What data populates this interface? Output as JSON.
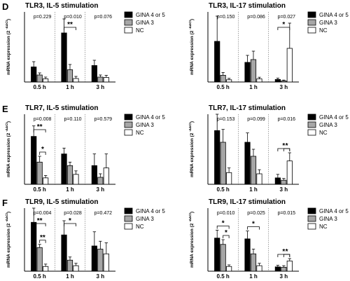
{
  "figure": {
    "ylabel": "mRNA expression (2",
    "ylabel_sup": "-ΔΔCt"
  },
  "colors": {
    "series": [
      "#000000",
      "#a6a6a6",
      "#ffffff"
    ],
    "stroke": "#000000"
  },
  "chart_data": [
    {
      "type": "bar",
      "panel_letter": "D",
      "title": "TLR3, IL-5 stimulation",
      "categories": [
        "0.5 h",
        "1 h",
        "3 h"
      ],
      "ylim": [
        0,
        20
      ],
      "series": [
        {
          "name": "GINA 4 or 5",
          "values": [
            4.3,
            14.0,
            4.7
          ],
          "errors": [
            1.5,
            4.0,
            1.5
          ]
        },
        {
          "name": "GINA 3",
          "values": [
            2.0,
            3.5,
            1.4
          ],
          "errors": [
            0.6,
            1.5,
            0.6
          ]
        },
        {
          "name": "NC",
          "values": [
            0.9,
            1.0,
            1.3
          ],
          "errors": [
            0.5,
            0.6,
            0.6
          ]
        }
      ],
      "pvalues": [
        "p=0.229",
        "p=0.010",
        "p=0.076"
      ],
      "significance": [
        "**"
      ]
    },
    {
      "type": "bar",
      "title": "TLR3, IL-17 stimulation",
      "categories": [
        "0.5 h",
        "1 h",
        "3 h"
      ],
      "ylim": [
        0,
        25
      ],
      "series": [
        {
          "name": "GINA 4 or 5",
          "values": [
            14.5,
            7.0,
            0.9
          ],
          "errors": [
            9.0,
            2.5,
            0.5
          ]
        },
        {
          "name": "GINA 3",
          "values": [
            2.4,
            8.0,
            0.4
          ],
          "errors": [
            1.0,
            3.0,
            0.3
          ]
        },
        {
          "name": "NC",
          "values": [
            0.8,
            1.1,
            12.0
          ],
          "errors": [
            0.5,
            0.6,
            9.0
          ]
        }
      ],
      "pvalues": [
        "p=0.150",
        "p=0.086",
        "p=0.027"
      ],
      "significance": [
        "*"
      ]
    },
    {
      "type": "bar",
      "panel_letter": "E",
      "title": "TLR7, IL-5 stimulation",
      "categories": [
        "0.5 h",
        "1 h",
        "3 h"
      ],
      "ylim": [
        0,
        6
      ],
      "series": [
        {
          "name": "GINA 4 or 5",
          "values": [
            4.1,
            2.6,
            1.6
          ],
          "errors": [
            0.9,
            0.5,
            1.0
          ]
        },
        {
          "name": "GINA 3",
          "values": [
            1.9,
            1.6,
            0.6
          ],
          "errors": [
            0.5,
            0.3,
            0.3
          ]
        },
        {
          "name": "NC",
          "values": [
            0.55,
            0.85,
            1.4
          ],
          "errors": [
            0.2,
            0.3,
            1.2
          ]
        }
      ],
      "pvalues": [
        "p=0.008",
        "p=0.110",
        "p=0.579"
      ],
      "significance": [
        "**",
        "*"
      ]
    },
    {
      "type": "bar",
      "title": "TLR7, IL-17 stimulation",
      "categories": [
        "0.5 h",
        "1 h",
        "3 h"
      ],
      "ylim": [
        0,
        6
      ],
      "series": [
        {
          "name": "GINA 4 or 5",
          "values": [
            4.6,
            3.6,
            0.55
          ],
          "errors": [
            1.4,
            0.8,
            0.3
          ]
        },
        {
          "name": "GINA 3",
          "values": [
            3.6,
            2.4,
            0.35
          ],
          "errors": [
            1.1,
            0.6,
            0.15
          ]
        },
        {
          "name": "NC",
          "values": [
            1.0,
            0.9,
            2.0
          ],
          "errors": [
            0.4,
            0.35,
            0.7
          ]
        }
      ],
      "pvalues": [
        "p=0.153",
        "p=0.099",
        "p=0.016"
      ],
      "significance": [
        "*",
        "*"
      ]
    },
    {
      "type": "bar",
      "panel_letter": "F",
      "title": "TLR9, IL-5 stimulation",
      "categories": [
        "0.5 h",
        "1 h",
        "3 h"
      ],
      "ylim": [
        0,
        8
      ],
      "series": [
        {
          "name": "GINA 4 or 5",
          "values": [
            6.2,
            4.6,
            3.2
          ],
          "errors": [
            1.8,
            1.8,
            1.8
          ]
        },
        {
          "name": "GINA 3",
          "values": [
            3.0,
            1.4,
            2.8
          ],
          "errors": [
            0.4,
            0.4,
            1.0
          ]
        },
        {
          "name": "NC",
          "values": [
            0.6,
            0.7,
            2.2
          ],
          "errors": [
            0.3,
            0.3,
            1.4
          ]
        }
      ],
      "pvalues": [
        "p=0.004",
        "p=0.028",
        "p=0.472"
      ],
      "significance": [
        "**",
        "**",
        "*"
      ]
    },
    {
      "type": "bar",
      "title": "TLR9, IL-17 stimulation",
      "categories": [
        "0.5 h",
        "1 h",
        "3 h"
      ],
      "ylim": [
        0,
        8
      ],
      "series": [
        {
          "name": "GINA 4 or 5",
          "values": [
            4.2,
            4.1,
            0.55
          ],
          "errors": [
            1.0,
            1.0,
            0.2
          ]
        },
        {
          "name": "GINA 3",
          "values": [
            3.4,
            2.2,
            0.5
          ],
          "errors": [
            0.6,
            0.6,
            0.2
          ]
        },
        {
          "name": "NC",
          "values": [
            0.6,
            0.7,
            1.3
          ],
          "errors": [
            0.2,
            0.3,
            0.3
          ]
        }
      ],
      "pvalues": [
        "p=0.010",
        "p=0.025",
        "p=0.015"
      ],
      "significance": [
        "*",
        "*",
        "*",
        "*",
        "*"
      ]
    }
  ]
}
